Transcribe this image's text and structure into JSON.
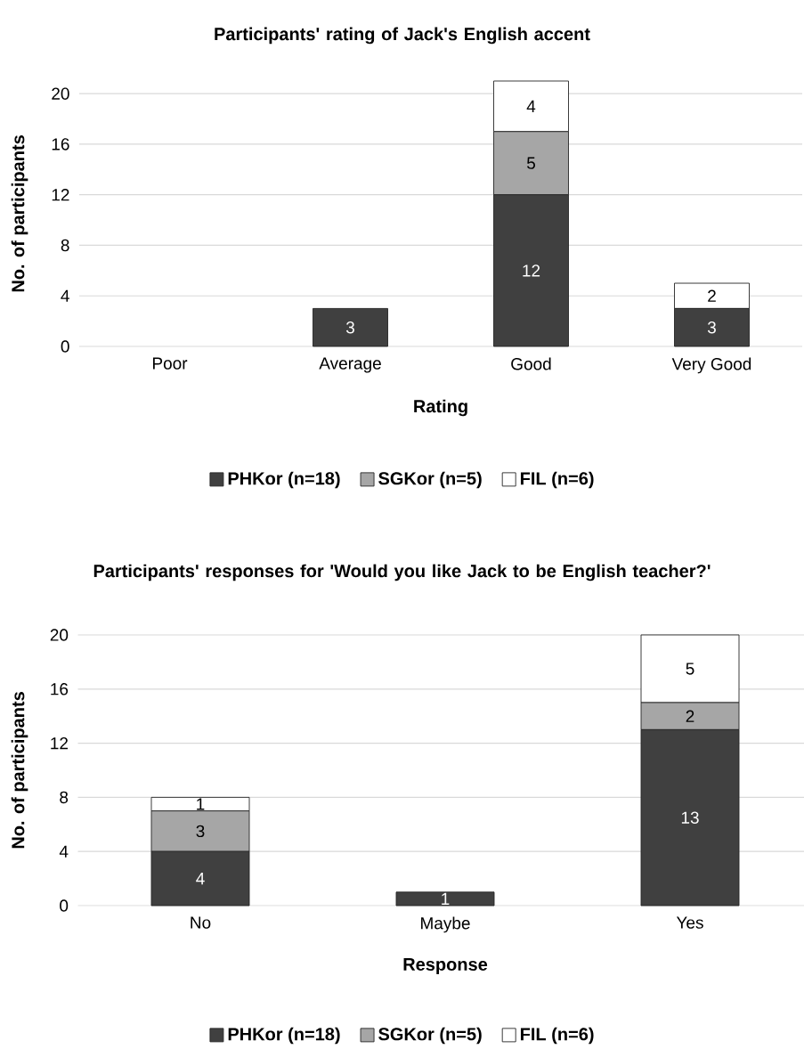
{
  "chart_data": [
    {
      "type": "bar",
      "title": "Participants' rating of Jack's English accent",
      "xlabel": "Rating",
      "ylabel": "No. of participants",
      "categories": [
        "Poor",
        "Average",
        "Good",
        "Very Good"
      ],
      "stacked": true,
      "series": [
        {
          "name": "PHKor (n=18)",
          "color": "#404040",
          "values": [
            0,
            3,
            12,
            3
          ],
          "value_labels": [
            null,
            "3",
            "12",
            "3"
          ]
        },
        {
          "name": "SGKor (n=5)",
          "color": "#a6a6a6",
          "values": [
            0,
            0,
            5,
            0
          ],
          "value_labels": [
            null,
            null,
            "5",
            null
          ]
        },
        {
          "name": "FIL (n=6)",
          "color": "#ffffff",
          "values": [
            0,
            0,
            4,
            2
          ],
          "value_labels": [
            null,
            null,
            "4",
            "2"
          ]
        }
      ],
      "ylim": [
        0,
        21
      ],
      "yticks": [
        0,
        4,
        8,
        12,
        16,
        20
      ],
      "grid": "y",
      "legend": "bottom"
    },
    {
      "type": "bar",
      "title": "Participants' responses for 'Would you like Jack to be English teacher?'",
      "xlabel": "Response",
      "ylabel": "No. of participants",
      "categories": [
        "No",
        "Maybe",
        "Yes"
      ],
      "stacked": true,
      "series": [
        {
          "name": "PHKor (n=18)",
          "color": "#404040",
          "values": [
            4,
            1,
            13
          ],
          "value_labels": [
            "4",
            "1",
            "13"
          ]
        },
        {
          "name": "SGKor (n=5)",
          "color": "#a6a6a6",
          "values": [
            3,
            0,
            2
          ],
          "value_labels": [
            "3",
            null,
            "2"
          ]
        },
        {
          "name": "FIL (n=6)",
          "color": "#ffffff",
          "values": [
            1,
            0,
            5
          ],
          "value_labels": [
            "1",
            null,
            "5"
          ]
        }
      ],
      "ylim": [
        0,
        20
      ],
      "yticks": [
        0,
        4,
        8,
        12,
        16,
        20
      ],
      "grid": "y",
      "legend": "bottom"
    }
  ]
}
